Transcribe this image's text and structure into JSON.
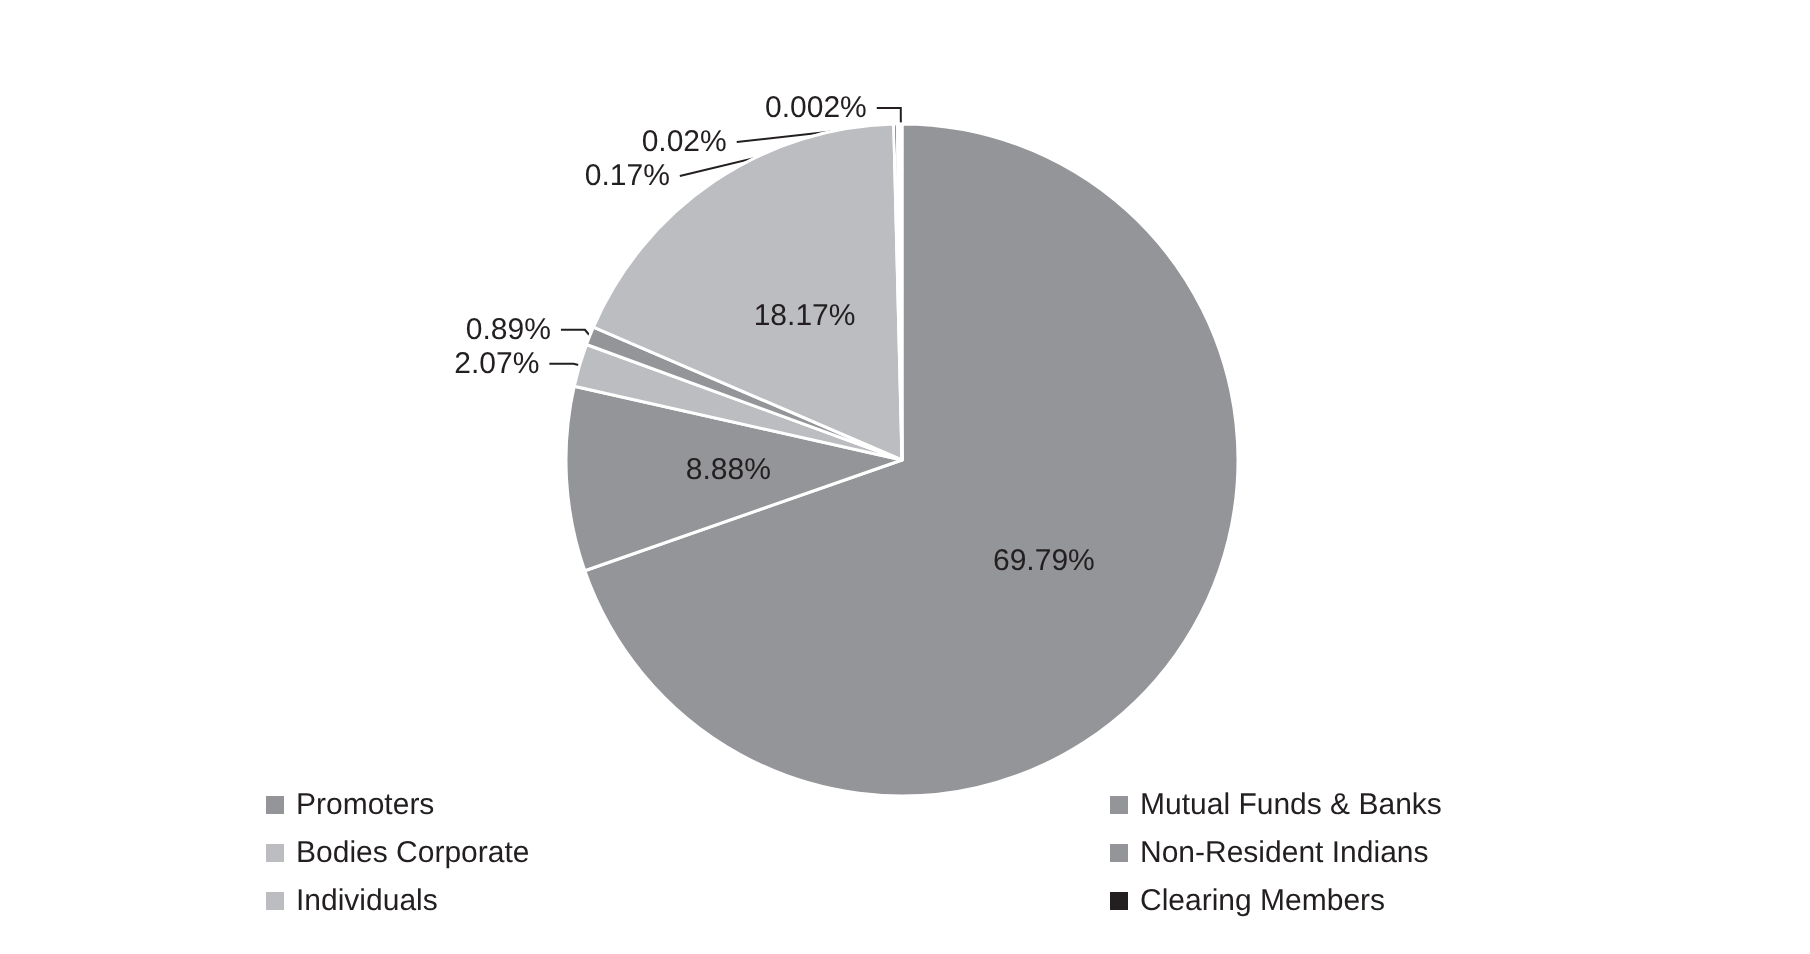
{
  "chart_data": {
    "type": "pie",
    "categories": [
      "Promoters",
      "Mutual Funds & Banks",
      "Bodies Corporate",
      "Non-Resident Indians",
      "Individuals",
      "Clearing Members",
      null,
      null
    ],
    "values": [
      69.79,
      8.88,
      2.07,
      0.89,
      18.17,
      0.17,
      0.02,
      0.002
    ],
    "colors": [
      "#939598",
      "#939598",
      "#bcbdc0",
      "#939598",
      "#bcbdc0",
      "#231f20",
      "#231f20",
      "#231f20"
    ],
    "value_labels": [
      "69.79%",
      "8.88%",
      "2.07%",
      "0.89%",
      "18.17%",
      "0.17%",
      "0.02%",
      "0.002%"
    ],
    "legend": "bottom"
  }
}
